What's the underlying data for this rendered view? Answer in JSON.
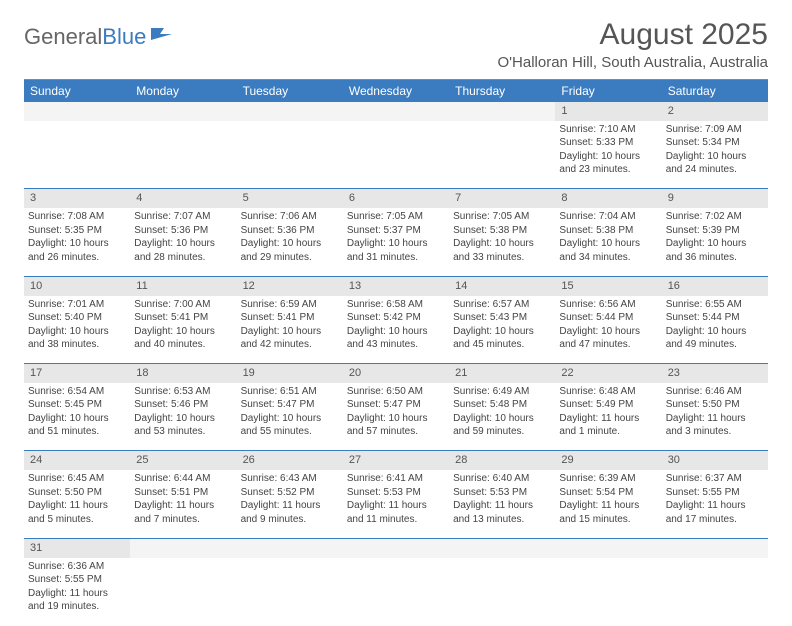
{
  "logo": {
    "general": "General",
    "blue": "Blue"
  },
  "header": {
    "month_year": "August 2025",
    "location": "O'Halloran Hill, South Australia, Australia"
  },
  "colors": {
    "header_bg": "#3b7bbf",
    "header_text": "#ffffff",
    "daynum_bg": "#e7e7e7",
    "cell_border": "#3b7bbf",
    "body_text": "#444444"
  },
  "daynames": [
    "Sunday",
    "Monday",
    "Tuesday",
    "Wednesday",
    "Thursday",
    "Friday",
    "Saturday"
  ],
  "weeks": [
    {
      "nums": [
        "",
        "",
        "",
        "",
        "",
        "1",
        "2"
      ],
      "cells": [
        null,
        null,
        null,
        null,
        null,
        {
          "sunrise": "Sunrise: 7:10 AM",
          "sunset": "Sunset: 5:33 PM",
          "daylight1": "Daylight: 10 hours",
          "daylight2": "and 23 minutes."
        },
        {
          "sunrise": "Sunrise: 7:09 AM",
          "sunset": "Sunset: 5:34 PM",
          "daylight1": "Daylight: 10 hours",
          "daylight2": "and 24 minutes."
        }
      ]
    },
    {
      "nums": [
        "3",
        "4",
        "5",
        "6",
        "7",
        "8",
        "9"
      ],
      "cells": [
        {
          "sunrise": "Sunrise: 7:08 AM",
          "sunset": "Sunset: 5:35 PM",
          "daylight1": "Daylight: 10 hours",
          "daylight2": "and 26 minutes."
        },
        {
          "sunrise": "Sunrise: 7:07 AM",
          "sunset": "Sunset: 5:36 PM",
          "daylight1": "Daylight: 10 hours",
          "daylight2": "and 28 minutes."
        },
        {
          "sunrise": "Sunrise: 7:06 AM",
          "sunset": "Sunset: 5:36 PM",
          "daylight1": "Daylight: 10 hours",
          "daylight2": "and 29 minutes."
        },
        {
          "sunrise": "Sunrise: 7:05 AM",
          "sunset": "Sunset: 5:37 PM",
          "daylight1": "Daylight: 10 hours",
          "daylight2": "and 31 minutes."
        },
        {
          "sunrise": "Sunrise: 7:05 AM",
          "sunset": "Sunset: 5:38 PM",
          "daylight1": "Daylight: 10 hours",
          "daylight2": "and 33 minutes."
        },
        {
          "sunrise": "Sunrise: 7:04 AM",
          "sunset": "Sunset: 5:38 PM",
          "daylight1": "Daylight: 10 hours",
          "daylight2": "and 34 minutes."
        },
        {
          "sunrise": "Sunrise: 7:02 AM",
          "sunset": "Sunset: 5:39 PM",
          "daylight1": "Daylight: 10 hours",
          "daylight2": "and 36 minutes."
        }
      ]
    },
    {
      "nums": [
        "10",
        "11",
        "12",
        "13",
        "14",
        "15",
        "16"
      ],
      "cells": [
        {
          "sunrise": "Sunrise: 7:01 AM",
          "sunset": "Sunset: 5:40 PM",
          "daylight1": "Daylight: 10 hours",
          "daylight2": "and 38 minutes."
        },
        {
          "sunrise": "Sunrise: 7:00 AM",
          "sunset": "Sunset: 5:41 PM",
          "daylight1": "Daylight: 10 hours",
          "daylight2": "and 40 minutes."
        },
        {
          "sunrise": "Sunrise: 6:59 AM",
          "sunset": "Sunset: 5:41 PM",
          "daylight1": "Daylight: 10 hours",
          "daylight2": "and 42 minutes."
        },
        {
          "sunrise": "Sunrise: 6:58 AM",
          "sunset": "Sunset: 5:42 PM",
          "daylight1": "Daylight: 10 hours",
          "daylight2": "and 43 minutes."
        },
        {
          "sunrise": "Sunrise: 6:57 AM",
          "sunset": "Sunset: 5:43 PM",
          "daylight1": "Daylight: 10 hours",
          "daylight2": "and 45 minutes."
        },
        {
          "sunrise": "Sunrise: 6:56 AM",
          "sunset": "Sunset: 5:44 PM",
          "daylight1": "Daylight: 10 hours",
          "daylight2": "and 47 minutes."
        },
        {
          "sunrise": "Sunrise: 6:55 AM",
          "sunset": "Sunset: 5:44 PM",
          "daylight1": "Daylight: 10 hours",
          "daylight2": "and 49 minutes."
        }
      ]
    },
    {
      "nums": [
        "17",
        "18",
        "19",
        "20",
        "21",
        "22",
        "23"
      ],
      "cells": [
        {
          "sunrise": "Sunrise: 6:54 AM",
          "sunset": "Sunset: 5:45 PM",
          "daylight1": "Daylight: 10 hours",
          "daylight2": "and 51 minutes."
        },
        {
          "sunrise": "Sunrise: 6:53 AM",
          "sunset": "Sunset: 5:46 PM",
          "daylight1": "Daylight: 10 hours",
          "daylight2": "and 53 minutes."
        },
        {
          "sunrise": "Sunrise: 6:51 AM",
          "sunset": "Sunset: 5:47 PM",
          "daylight1": "Daylight: 10 hours",
          "daylight2": "and 55 minutes."
        },
        {
          "sunrise": "Sunrise: 6:50 AM",
          "sunset": "Sunset: 5:47 PM",
          "daylight1": "Daylight: 10 hours",
          "daylight2": "and 57 minutes."
        },
        {
          "sunrise": "Sunrise: 6:49 AM",
          "sunset": "Sunset: 5:48 PM",
          "daylight1": "Daylight: 10 hours",
          "daylight2": "and 59 minutes."
        },
        {
          "sunrise": "Sunrise: 6:48 AM",
          "sunset": "Sunset: 5:49 PM",
          "daylight1": "Daylight: 11 hours",
          "daylight2": "and 1 minute."
        },
        {
          "sunrise": "Sunrise: 6:46 AM",
          "sunset": "Sunset: 5:50 PM",
          "daylight1": "Daylight: 11 hours",
          "daylight2": "and 3 minutes."
        }
      ]
    },
    {
      "nums": [
        "24",
        "25",
        "26",
        "27",
        "28",
        "29",
        "30"
      ],
      "cells": [
        {
          "sunrise": "Sunrise: 6:45 AM",
          "sunset": "Sunset: 5:50 PM",
          "daylight1": "Daylight: 11 hours",
          "daylight2": "and 5 minutes."
        },
        {
          "sunrise": "Sunrise: 6:44 AM",
          "sunset": "Sunset: 5:51 PM",
          "daylight1": "Daylight: 11 hours",
          "daylight2": "and 7 minutes."
        },
        {
          "sunrise": "Sunrise: 6:43 AM",
          "sunset": "Sunset: 5:52 PM",
          "daylight1": "Daylight: 11 hours",
          "daylight2": "and 9 minutes."
        },
        {
          "sunrise": "Sunrise: 6:41 AM",
          "sunset": "Sunset: 5:53 PM",
          "daylight1": "Daylight: 11 hours",
          "daylight2": "and 11 minutes."
        },
        {
          "sunrise": "Sunrise: 6:40 AM",
          "sunset": "Sunset: 5:53 PM",
          "daylight1": "Daylight: 11 hours",
          "daylight2": "and 13 minutes."
        },
        {
          "sunrise": "Sunrise: 6:39 AM",
          "sunset": "Sunset: 5:54 PM",
          "daylight1": "Daylight: 11 hours",
          "daylight2": "and 15 minutes."
        },
        {
          "sunrise": "Sunrise: 6:37 AM",
          "sunset": "Sunset: 5:55 PM",
          "daylight1": "Daylight: 11 hours",
          "daylight2": "and 17 minutes."
        }
      ]
    },
    {
      "nums": [
        "31",
        "",
        "",
        "",
        "",
        "",
        ""
      ],
      "cells": [
        {
          "sunrise": "Sunrise: 6:36 AM",
          "sunset": "Sunset: 5:55 PM",
          "daylight1": "Daylight: 11 hours",
          "daylight2": "and 19 minutes."
        },
        null,
        null,
        null,
        null,
        null,
        null
      ],
      "last": true
    }
  ]
}
